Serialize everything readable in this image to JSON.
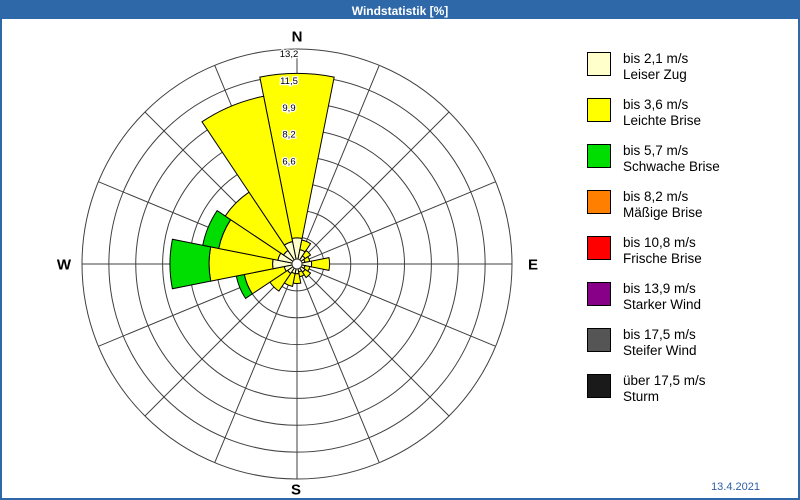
{
  "window": {
    "title": "Windstatistik [%]"
  },
  "compass": {
    "n": "N",
    "e": "E",
    "s": "S",
    "w": "W"
  },
  "date_label": "13.4.2021",
  "colors": {
    "titlebar": "#2e68a8",
    "border": "#2e68a8",
    "grid": "#404040",
    "date_text": "#2e5fa3"
  },
  "chart_data": {
    "type": "windrose",
    "title": "Windstatistik [%]",
    "unit": "%",
    "rings": 8,
    "ring_step": 1.65,
    "max": 13.2,
    "grid": "on",
    "legend_position": "right",
    "ring_labels": [
      {
        "value": 6.6,
        "label": "6,6"
      },
      {
        "value": 8.25,
        "label": "8,2"
      },
      {
        "value": 9.9,
        "label": "9,9"
      },
      {
        "value": 11.55,
        "label": "11,5"
      },
      {
        "value": 13.2,
        "label": "13,2"
      }
    ],
    "directions": [
      "N",
      "NNE",
      "NE",
      "ENE",
      "E",
      "ESE",
      "SE",
      "SSE",
      "S",
      "SSW",
      "SW",
      "WSW",
      "W",
      "WNW",
      "NW",
      "NNW"
    ],
    "series": [
      {
        "name": "bis 2,1 m/s",
        "color": "#ffffcc",
        "values": [
          1.6,
          0.9,
          0.6,
          0.5,
          0.9,
          0.5,
          0.6,
          0.5,
          0.6,
          0.6,
          0.7,
          0.8,
          1.5,
          1.2,
          1.0,
          1.4
        ]
      },
      {
        "name": "bis 3,6 m/s",
        "color": "#ffff00",
        "values": [
          10.1,
          0.6,
          0.4,
          0.3,
          1.1,
          0.3,
          0.4,
          0.3,
          0.6,
          0.8,
          1.3,
          2.5,
          3.9,
          3.7,
          4.3,
          9.1
        ]
      },
      {
        "name": "bis 5,7 m/s",
        "color": "#00dd00",
        "values": [
          0,
          0,
          0,
          0,
          0,
          0,
          0,
          0,
          0,
          0,
          0,
          0.5,
          2.4,
          1.0,
          0,
          0
        ]
      }
    ]
  },
  "legend": {
    "items": [
      {
        "color": "#ffffcc",
        "speed": "bis 2,1 m/s",
        "name": "Leiser Zug"
      },
      {
        "color": "#ffff00",
        "speed": "bis 3,6 m/s",
        "name": "Leichte Brise"
      },
      {
        "color": "#00dd00",
        "speed": "bis 5,7 m/s",
        "name": "Schwache Brise"
      },
      {
        "color": "#ff8000",
        "speed": "bis 8,2 m/s",
        "name": "Mäßige Brise"
      },
      {
        "color": "#ff0000",
        "speed": "bis 10,8 m/s",
        "name": "Frische Brise"
      },
      {
        "color": "#880088",
        "speed": "bis 13,9 m/s",
        "name": "Starker Wind"
      },
      {
        "color": "#555555",
        "speed": "bis 17,5 m/s",
        "name": "Steifer Wind"
      },
      {
        "color": "#1a1a1a",
        "speed": "über 17,5 m/s",
        "name": "Sturm"
      }
    ]
  }
}
